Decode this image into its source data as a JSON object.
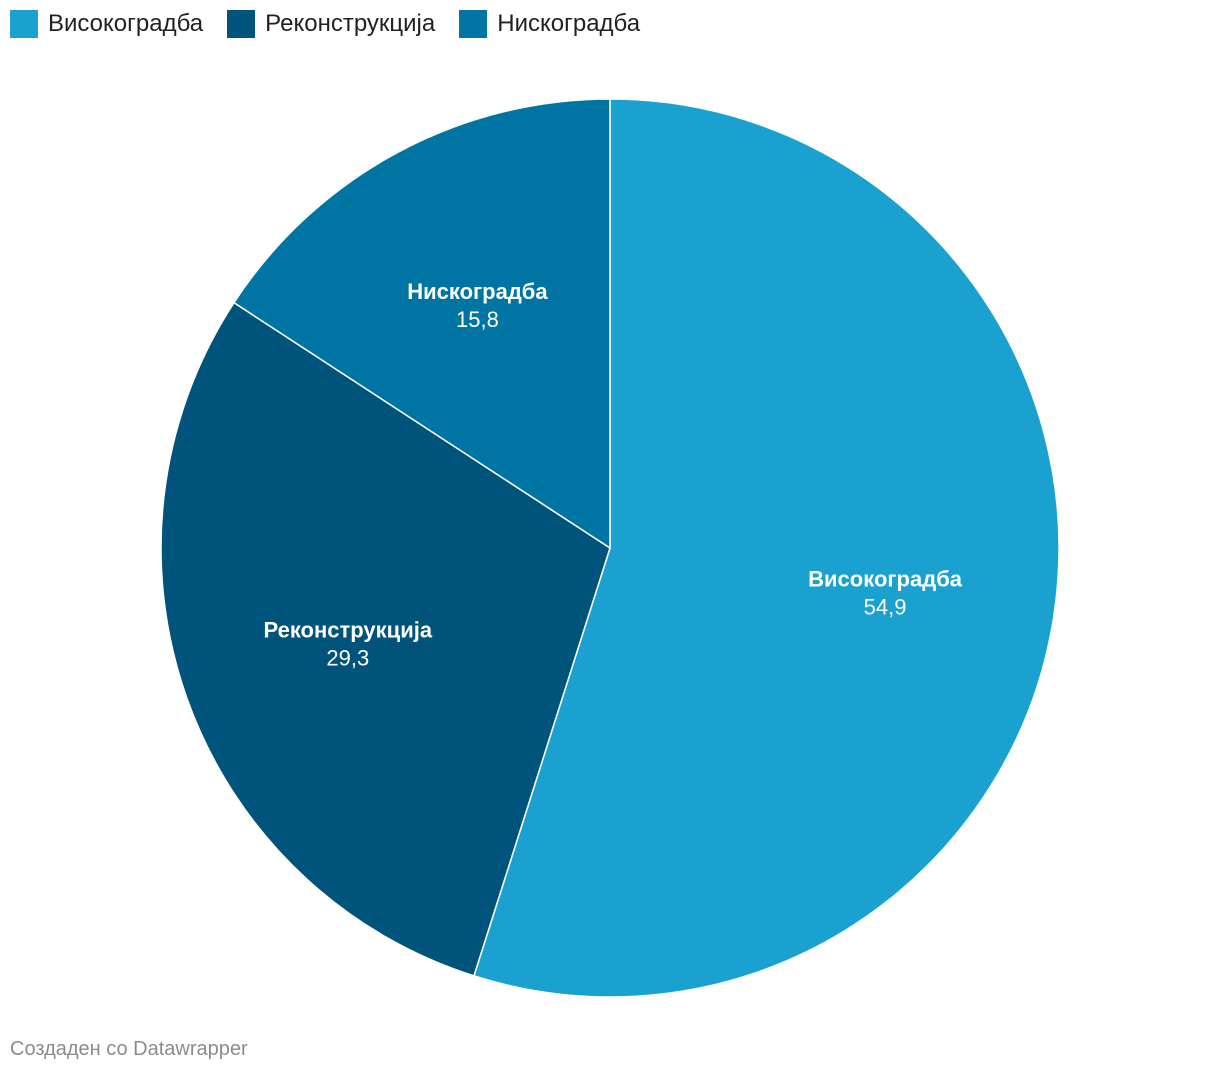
{
  "chart_data": {
    "type": "pie",
    "slices": [
      {
        "label": "Високоградба",
        "value": 54.9,
        "display_value": "54,9",
        "color": "#1aa1cf"
      },
      {
        "label": "Реконструкција",
        "value": 29.3,
        "display_value": "29,3",
        "color": "#00537a"
      },
      {
        "label": "Нискоградба",
        "value": 15.8,
        "display_value": "15,8",
        "color": "#0075a3"
      }
    ],
    "legend_placement": "top-left",
    "start_angle": "12 o'clock",
    "direction": "clockwise"
  },
  "legend": {
    "items": [
      {
        "label": "Високоградба",
        "color": "#1aa1cf"
      },
      {
        "label": "Реконструкција",
        "color": "#00537a"
      },
      {
        "label": "Нискоградба",
        "color": "#0075a3"
      }
    ]
  },
  "footer": {
    "credit": "Создаден со Datawrapper"
  }
}
